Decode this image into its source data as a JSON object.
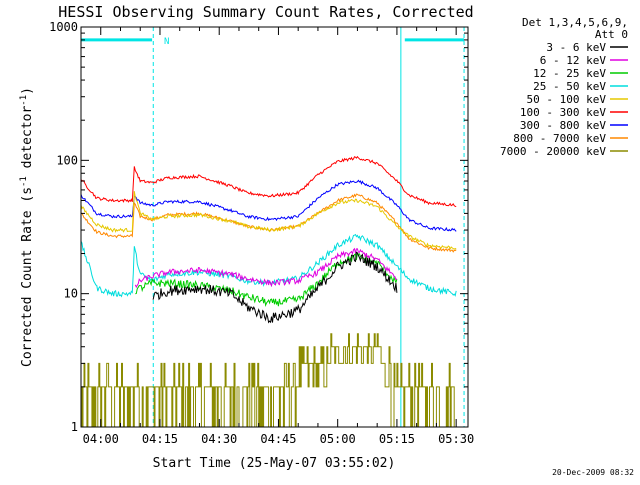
{
  "colors": {
    "background": "#ffffff",
    "axis": "#000000",
    "marker": "#00e5e5"
  },
  "chart_data": {
    "type": "line",
    "title": "HESSI Observing Summary Count Rates, Corrected",
    "xlabel": "Start Time (25-May-07 03:55:02)",
    "ylabel": "Corrected Count Rate (s",
    "ylabel_sup": "-1",
    "ylabel_tail": " detector",
    "ylabel_tail_sup": "-1",
    "ylabel_close": ")",
    "x_unit": "minutes after 03:55:02",
    "xlim": [
      0,
      98
    ],
    "ylim": [
      1,
      1000
    ],
    "yscale": "log",
    "xticks": [
      {
        "x": 5,
        "label": "04:00"
      },
      {
        "x": 20,
        "label": "04:15"
      },
      {
        "x": 35,
        "label": "04:30"
      },
      {
        "x": 50,
        "label": "04:45"
      },
      {
        "x": 65,
        "label": "05:00"
      },
      {
        "x": 80,
        "label": "05:15"
      },
      {
        "x": 95,
        "label": "05:30"
      }
    ],
    "yticks": [
      {
        "y": 1,
        "label": "1"
      },
      {
        "y": 10,
        "label": "10"
      },
      {
        "y": 100,
        "label": "100"
      },
      {
        "y": 1000,
        "label": "1000"
      }
    ],
    "legend_header": [
      "Det 1,3,4,5,6,9,",
      "Att 0"
    ],
    "legend_position": "right",
    "annotation": {
      "text": "N",
      "x": 19.5
    },
    "night_bars": [
      [
        0,
        18
      ],
      [
        82,
        97
      ]
    ],
    "night_bar_y": 800,
    "shade_lines": [
      0,
      18.3,
      81,
      97
    ],
    "x": [
      0,
      4,
      8,
      13,
      13.5,
      15,
      18,
      22,
      30,
      38,
      42,
      48,
      55,
      60,
      65,
      70,
      75,
      80,
      83,
      88,
      95
    ],
    "series": [
      {
        "name": "3 - 6 keV",
        "color": "#000000",
        "noise": 0.09,
        "values": [
          null,
          null,
          null,
          null,
          null,
          null,
          9.5,
          10.5,
          11,
          10,
          8,
          6.5,
          7.5,
          11,
          16,
          19,
          16,
          11,
          null,
          null,
          null
        ]
      },
      {
        "name": "6 - 12 keV",
        "color": "#e000e0",
        "noise": 0.05,
        "values": [
          null,
          null,
          null,
          null,
          11,
          12.5,
          13.5,
          14.5,
          15,
          14,
          13,
          12,
          12.5,
          14.5,
          19,
          21,
          18,
          13,
          null,
          null,
          null
        ]
      },
      {
        "name": "12 - 25 keV",
        "color": "#00cc00",
        "noise": 0.07,
        "values": [
          null,
          null,
          null,
          null,
          10.5,
          11,
          12,
          12,
          11.5,
          10.5,
          9.5,
          8.5,
          9,
          12,
          17,
          19,
          17,
          12,
          null,
          null,
          null
        ]
      },
      {
        "name": "25 - 50 keV",
        "color": "#00dddd",
        "noise": 0.05,
        "values": [
          24,
          11,
          10,
          10,
          22,
          14,
          12.5,
          14,
          14.5,
          13.5,
          12.5,
          12,
          13,
          17,
          23,
          27,
          23,
          16,
          13,
          11,
          10
        ]
      },
      {
        "name": "50 - 100 keV",
        "color": "#e6c800",
        "noise": 0.03,
        "values": [
          45,
          33,
          30,
          30,
          58,
          40,
          36,
          38,
          39,
          35,
          32,
          30,
          32,
          40,
          48,
          50,
          45,
          32,
          27,
          23,
          22
        ]
      },
      {
        "name": "100 - 300 keV",
        "color": "#ff0000",
        "noise": 0.025,
        "values": [
          72,
          52,
          50,
          50,
          88,
          70,
          68,
          74,
          76,
          64,
          57,
          54,
          57,
          78,
          98,
          105,
          95,
          70,
          55,
          48,
          46
        ]
      },
      {
        "name": "300 - 800 keV",
        "color": "#0000ff",
        "noise": 0.025,
        "values": [
          55,
          40,
          38,
          38,
          55,
          48,
          46,
          49,
          49,
          42,
          38,
          36,
          38,
          52,
          66,
          70,
          62,
          46,
          36,
          31,
          30
        ]
      },
      {
        "name": "800 - 7000 keV",
        "color": "#ff8800",
        "noise": 0.025,
        "values": [
          40,
          29,
          27,
          27,
          48,
          38,
          36,
          39,
          40,
          35,
          32,
          30,
          32,
          40,
          50,
          55,
          48,
          34,
          26,
          22,
          21
        ]
      },
      {
        "name": "7000 - 20000 keV",
        "color": "#8b8b00",
        "noise": 0,
        "values": [
          2,
          2,
          2,
          2,
          2,
          2,
          2,
          2,
          2,
          2,
          2,
          2,
          2.5,
          3,
          4,
          4.5,
          4,
          2,
          2,
          2,
          2
        ]
      }
    ]
  },
  "footer": {
    "timestamp": "20-Dec-2009 08:32"
  }
}
